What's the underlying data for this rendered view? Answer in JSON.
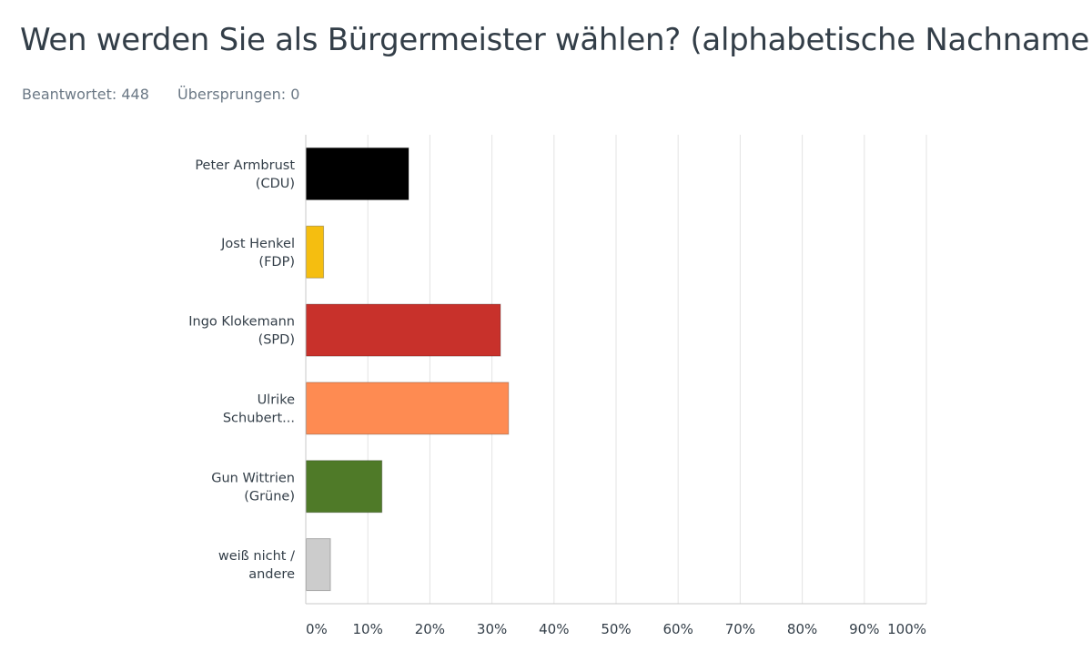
{
  "header": {
    "title": "Wen werden Sie als Bürgermeister wählen? (alphabetische Nachnamen)",
    "answered_label": "Beantwortet: 448",
    "skipped_label": "Übersprungen: 0"
  },
  "chart_data": {
    "type": "bar",
    "orientation": "horizontal",
    "categories": [
      [
        "Peter Armbrust",
        "(CDU)"
      ],
      [
        "Jost Henkel",
        "(FDP)"
      ],
      [
        "Ingo Klokemann",
        "(SPD)"
      ],
      [
        "Ulrike",
        "Schubert..."
      ],
      [
        "Gun Wittrien",
        "(Grüne)"
      ],
      [
        "weiß nicht /",
        "andere"
      ]
    ],
    "values": [
      16.5,
      2.8,
      31.3,
      32.6,
      12.2,
      3.9
    ],
    "colors": [
      "#000000",
      "#f5be10",
      "#c8312b",
      "#fe8b52",
      "#4f7a28",
      "#cccccc"
    ],
    "xlim": [
      0,
      100
    ],
    "xticks": [
      "0%",
      "10%",
      "20%",
      "30%",
      "40%",
      "50%",
      "60%",
      "70%",
      "80%",
      "90%",
      "100%"
    ],
    "grid": true
  }
}
